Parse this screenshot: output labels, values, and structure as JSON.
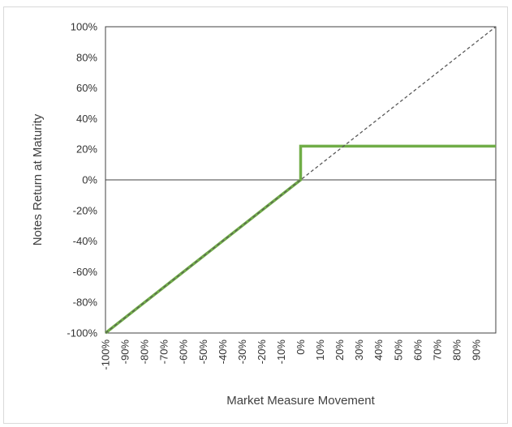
{
  "chart_data": {
    "type": "line",
    "title": "",
    "xlabel": "Market Measure Movement",
    "ylabel": "Notes Return at Maturity",
    "xlim": [
      -100,
      100
    ],
    "ylim": [
      -100,
      100
    ],
    "x_ticks": [
      -100,
      -90,
      -80,
      -70,
      -60,
      -50,
      -40,
      -30,
      -20,
      -10,
      0,
      10,
      20,
      30,
      40,
      50,
      60,
      70,
      80,
      90
    ],
    "x_tick_labels": [
      "-100%",
      "-90%",
      "-80%",
      "-70%",
      "-60%",
      "-50%",
      "-40%",
      "-30%",
      "-20%",
      "-10%",
      "0%",
      "10%",
      "20%",
      "30%",
      "40%",
      "50%",
      "60%",
      "70%",
      "80%",
      "90%"
    ],
    "y_ticks": [
      -100,
      -80,
      -60,
      -40,
      -20,
      0,
      20,
      40,
      60,
      80,
      100
    ],
    "y_tick_labels": [
      "-100%",
      "-80%",
      "-60%",
      "-40%",
      "-20%",
      "0%",
      "20%",
      "40%",
      "60%",
      "80%",
      "100%"
    ],
    "grid": false,
    "legend": "none",
    "series": [
      {
        "style": "dashed",
        "color": "#595959",
        "points": [
          [
            -100,
            -100
          ],
          [
            100,
            100
          ]
        ]
      },
      {
        "style": "solid",
        "color": "#70ad47",
        "points": [
          [
            -100,
            -100
          ],
          [
            0,
            0
          ],
          [
            0,
            22
          ],
          [
            100,
            22
          ]
        ]
      }
    ]
  }
}
